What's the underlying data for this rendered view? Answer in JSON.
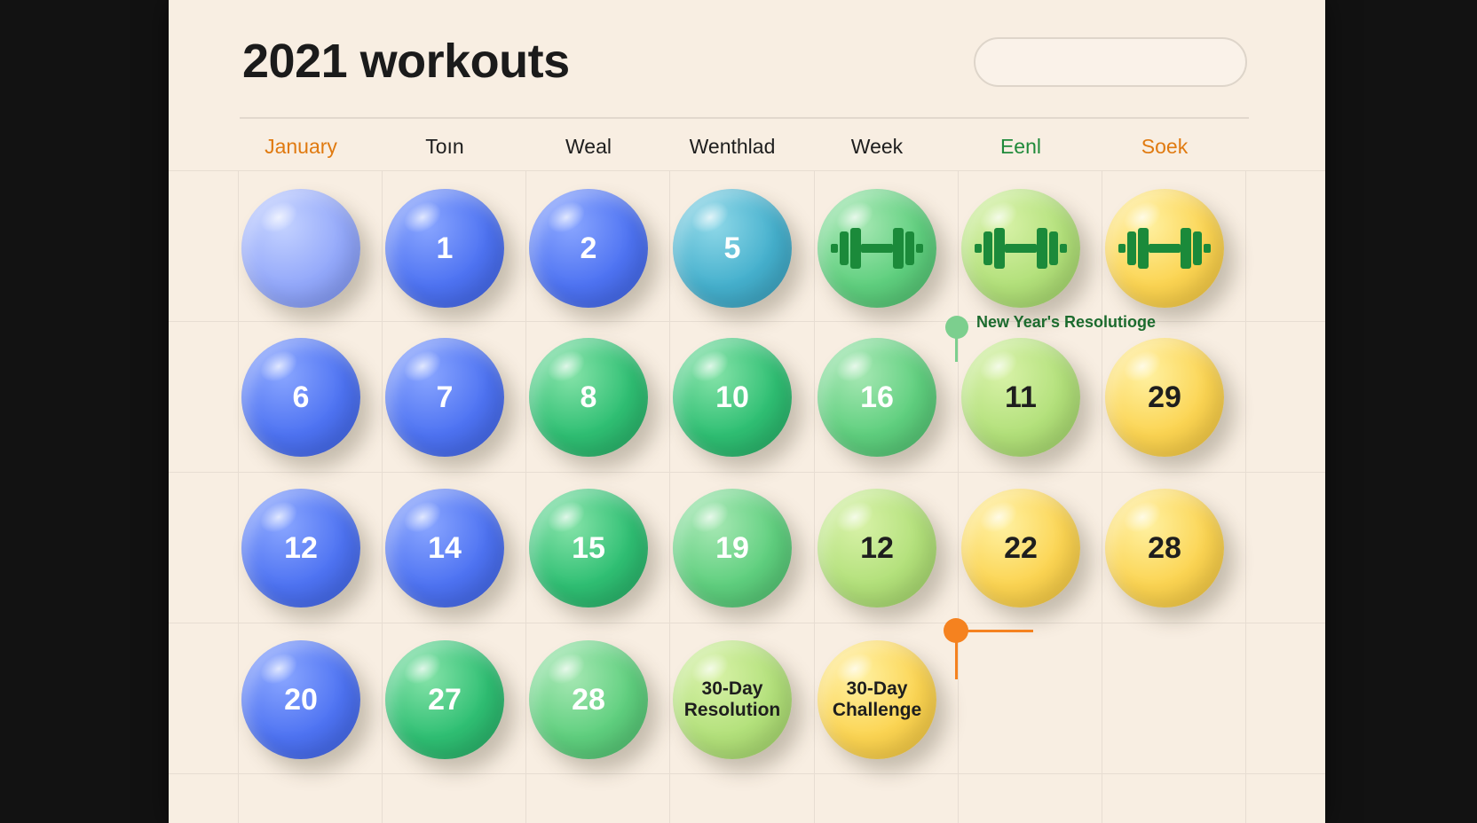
{
  "page": {
    "title": "2021 workouts"
  },
  "search": {
    "placeholder": ""
  },
  "columns": [
    {
      "label": "January",
      "color": "#e07a10"
    },
    {
      "label": "Toın",
      "color": "#1e1e1e"
    },
    {
      "label": "Weal",
      "color": "#1e1e1e"
    },
    {
      "label": "Wenthlad",
      "color": "#1e1e1e"
    },
    {
      "label": "Week",
      "color": "#1e1e1e"
    },
    {
      "label": "Eenl",
      "color": "#1f8a3a"
    },
    {
      "label": "Soek",
      "color": "#e07a10"
    }
  ],
  "days": [
    [
      {
        "label": "",
        "color_class": "c-lightblue"
      },
      {
        "label": "1",
        "color_class": "c-blue"
      },
      {
        "label": "2",
        "color_class": "c-blue"
      },
      {
        "label": "5",
        "color_class": "c-teal"
      },
      {
        "label": "",
        "color_class": "c-green2",
        "icon": "dumbbell-icon"
      },
      {
        "label": "",
        "color_class": "c-lime",
        "icon": "dumbbell-icon"
      },
      {
        "label": "",
        "color_class": "c-yellow",
        "icon": "dumbbell-icon"
      }
    ],
    [
      {
        "label": "6",
        "color_class": "c-blue"
      },
      {
        "label": "7",
        "color_class": "c-blue"
      },
      {
        "label": "8",
        "color_class": "c-green"
      },
      {
        "label": "10",
        "color_class": "c-green"
      },
      {
        "label": "16",
        "color_class": "c-green2"
      },
      {
        "label": "11",
        "color_class": "c-lime"
      },
      {
        "label": "29",
        "color_class": "c-yellow"
      }
    ],
    [
      {
        "label": "12",
        "color_class": "c-blue"
      },
      {
        "label": "14",
        "color_class": "c-blue"
      },
      {
        "label": "15",
        "color_class": "c-green"
      },
      {
        "label": "19",
        "color_class": "c-green2"
      },
      {
        "label": "12",
        "color_class": "c-lime"
      },
      {
        "label": "22",
        "color_class": "c-yellow"
      },
      {
        "label": "28",
        "color_class": "c-yellow"
      }
    ],
    [
      {
        "label": "20",
        "color_class": "c-blue"
      },
      {
        "label": "27",
        "color_class": "c-green"
      },
      {
        "label": "28",
        "color_class": "c-green2"
      },
      {
        "label": "30-Day Resolution",
        "color_class": "c-lime"
      },
      {
        "label": "30-Day Challenge",
        "color_class": "c-yellow"
      }
    ]
  ],
  "annotations": {
    "resolution_label": "New Year's Resolutioge",
    "resolution_color": "#7ccf8e",
    "challenge_color": "#f5821f"
  },
  "icon_colors": {
    "dumbbell": "#1b8a3a"
  }
}
